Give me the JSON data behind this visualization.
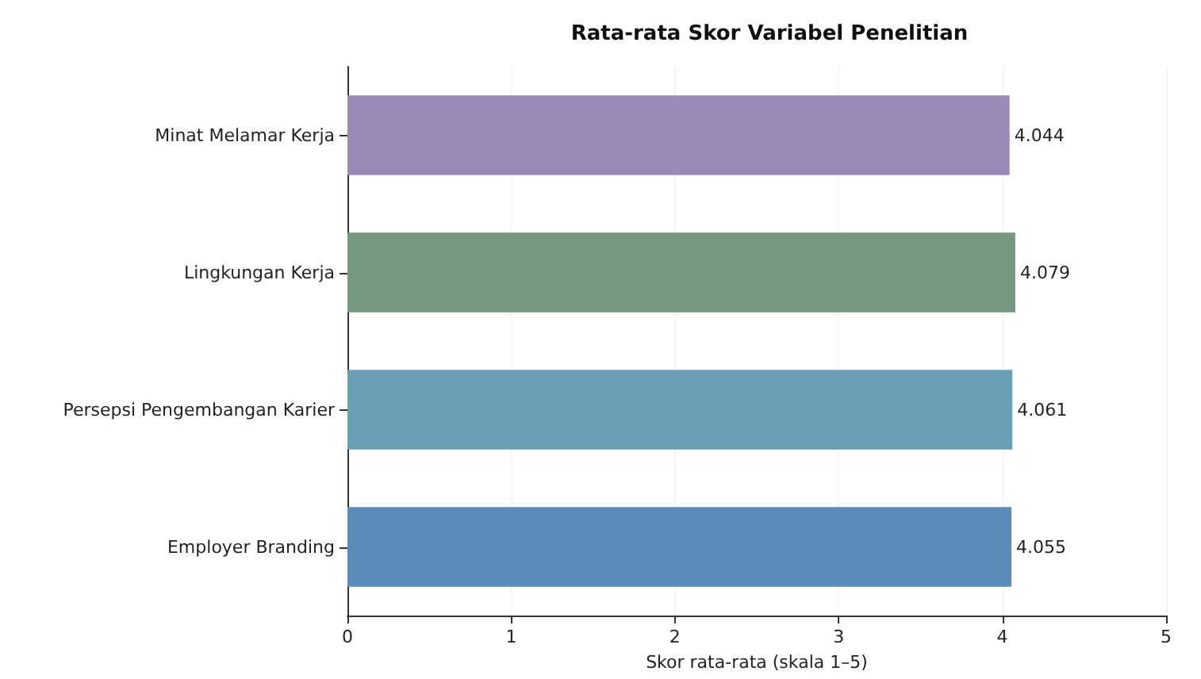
{
  "chart_data": {
    "type": "bar",
    "orientation": "horizontal",
    "title": "Rata-rata Skor Variabel Penelitian",
    "xlabel": "Skor rata-rata (skala 1–5)",
    "categories": [
      "Minat Melamar Kerja",
      "Lingkungan Kerja",
      "Persepsi Pengembangan Karier",
      "Employer Branding"
    ],
    "values": [
      4.044,
      4.079,
      4.061,
      4.055
    ],
    "colors": [
      "#9b8ab5",
      "#76987e",
      "#6a9fb5",
      "#5b8bb8"
    ],
    "xlim": [
      0,
      5
    ],
    "xticks": [
      0,
      1,
      2,
      3,
      4,
      5
    ],
    "grid": "x",
    "data_labels": true
  }
}
